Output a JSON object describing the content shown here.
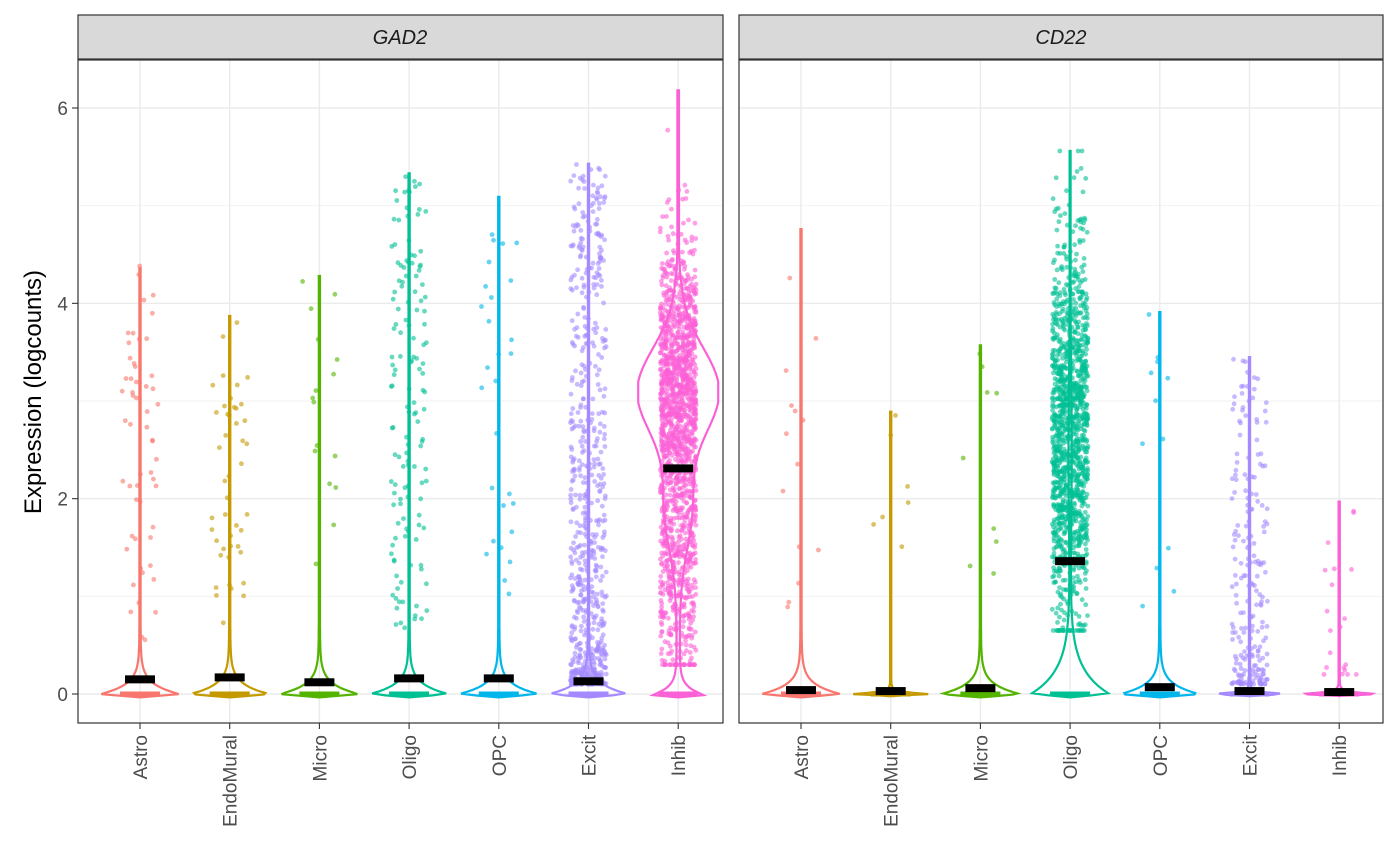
{
  "chart_data": {
    "type": "violin",
    "ylabel": "Expression (logcounts)",
    "xlabel": "",
    "ylim": [
      -0.3,
      6.5
    ],
    "yticks": [
      0,
      2,
      4,
      6
    ],
    "grid": true,
    "categories": [
      "Astro",
      "EndoMural",
      "Micro",
      "Oligo",
      "OPC",
      "Excit",
      "Inhib"
    ],
    "colors": {
      "Astro": "#F8766D",
      "EndoMural": "#C49A00",
      "Micro": "#53B400",
      "Oligo": "#00C094",
      "OPC": "#00B6EB",
      "Excit": "#A58AFF",
      "Inhib": "#FB61D7"
    },
    "panels": [
      {
        "title": "GAD2",
        "groups": [
          {
            "category": "Astro",
            "max": 4.36,
            "mean": 0.15,
            "n_points": 55,
            "point_range": [
              0.5,
              4.4
            ],
            "shape": "zero"
          },
          {
            "category": "EndoMural",
            "max": 3.87,
            "mean": 0.17,
            "n_points": 45,
            "point_range": [
              0.7,
              3.9
            ],
            "shape": "zero"
          },
          {
            "category": "Micro",
            "max": 4.28,
            "mean": 0.12,
            "n_points": 16,
            "point_range": [
              1.2,
              4.3
            ],
            "shape": "zero"
          },
          {
            "category": "Oligo",
            "max": 5.33,
            "mean": 0.16,
            "n_points": 140,
            "point_range": [
              0.65,
              5.33
            ],
            "shape": "zero"
          },
          {
            "category": "OPC",
            "max": 5.09,
            "mean": 0.16,
            "n_points": 28,
            "point_range": [
              0.7,
              5.1
            ],
            "shape": "zero"
          },
          {
            "category": "Excit",
            "max": 5.43,
            "mean": 0.13,
            "n_points": 700,
            "point_range": [
              0.1,
              5.43
            ],
            "shape": "zero"
          },
          {
            "category": "Inhib",
            "max": 6.18,
            "mean": 2.31,
            "n_points": 1600,
            "point_range": [
              0.3,
              6.18
            ],
            "shape": "bimodal"
          }
        ]
      },
      {
        "title": "CD22",
        "groups": [
          {
            "category": "Astro",
            "max": 4.76,
            "mean": 0.04,
            "n_points": 14,
            "point_range": [
              0.6,
              4.76
            ],
            "shape": "zero"
          },
          {
            "category": "EndoMural",
            "max": 2.89,
            "mean": 0.03,
            "n_points": 7,
            "point_range": [
              1.2,
              2.89
            ],
            "shape": "flat"
          },
          {
            "category": "Micro",
            "max": 3.57,
            "mean": 0.06,
            "n_points": 9,
            "point_range": [
              1.2,
              3.57
            ],
            "shape": "zero"
          },
          {
            "category": "Oligo",
            "max": 5.56,
            "mean": 1.36,
            "n_points": 1300,
            "point_range": [
              0.65,
              5.56
            ],
            "shape": "oligo"
          },
          {
            "category": "OPC",
            "max": 3.91,
            "mean": 0.07,
            "n_points": 12,
            "point_range": [
              0.9,
              3.91
            ],
            "shape": "zero"
          },
          {
            "category": "Excit",
            "max": 3.45,
            "mean": 0.03,
            "n_points": 220,
            "point_range": [
              0.1,
              3.45
            ],
            "shape": "flat"
          },
          {
            "category": "Inhib",
            "max": 1.97,
            "mean": 0.02,
            "n_points": 20,
            "point_range": [
              0.2,
              1.97
            ],
            "shape": "flat"
          }
        ]
      }
    ]
  }
}
